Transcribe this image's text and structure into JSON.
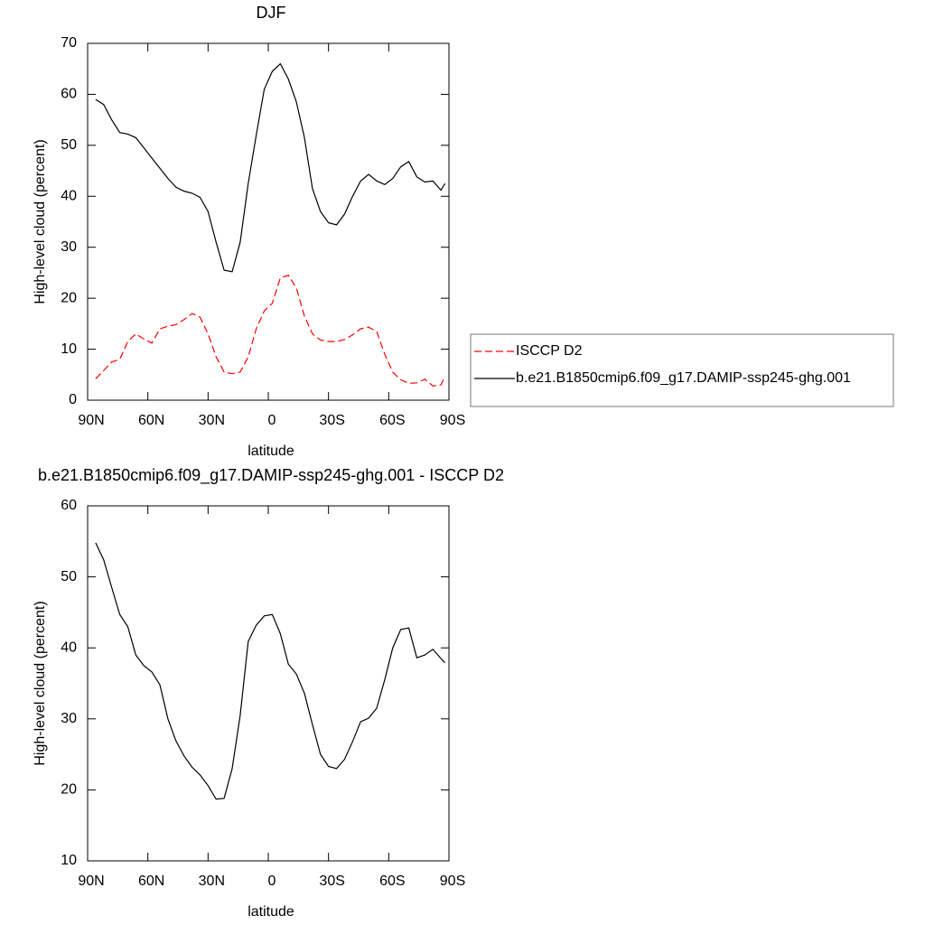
{
  "chart_data": [
    {
      "type": "line",
      "title": "DJF",
      "x_label": "latitude",
      "y_label": "High-level cloud (percent)",
      "xlim": [
        90,
        -90
      ],
      "xticks": [
        {
          "value": 90,
          "label": "90N"
        },
        {
          "value": 60,
          "label": "60N"
        },
        {
          "value": 30,
          "label": "30N"
        },
        0,
        {
          "value": -30,
          "label": "30S"
        },
        {
          "value": -60,
          "label": "60S"
        },
        {
          "value": -90,
          "label": "90S"
        }
      ],
      "ylim": [
        0,
        70
      ],
      "yticks": [
        0,
        10,
        20,
        30,
        40,
        50,
        60,
        70
      ],
      "legend": "right",
      "x": [
        86,
        82,
        78,
        74,
        70,
        66,
        62,
        58,
        54,
        50,
        46,
        42,
        38,
        34,
        30,
        26,
        22,
        18,
        14,
        10,
        6,
        2,
        -2,
        -6,
        -10,
        -14,
        -18,
        -22,
        -26,
        -30,
        -34,
        -38,
        -42,
        -46,
        -50,
        -54,
        -58,
        -62,
        -66,
        -70,
        -74,
        -78,
        -82,
        -86,
        -88
      ],
      "series": [
        {
          "name": "ISCCP D2",
          "color": "#ff0000",
          "line_style": "dashed",
          "values": [
            4.2,
            5.8,
            7.5,
            8,
            11.5,
            13,
            12,
            11.2,
            14,
            14.5,
            14.8,
            15.8,
            17,
            16.3,
            13,
            8.5,
            5.5,
            5.2,
            5.5,
            8.5,
            14,
            17.5,
            19,
            24,
            24.5,
            22,
            16.5,
            13,
            11.8,
            11.5,
            11.5,
            11.9,
            12.8,
            14,
            14.3,
            13.5,
            9,
            5.5,
            4,
            3.3,
            3.4,
            4.1,
            2.8,
            3,
            4.7
          ]
        },
        {
          "name": "b.e21.B1850cmip6.f09_g17.DAMIP-ssp245-ghg.001",
          "color": "#000000",
          "line_style": "solid",
          "values": [
            59,
            58,
            55,
            52.5,
            52.2,
            51.5,
            49.5,
            47.5,
            45.5,
            43.5,
            41.8,
            41,
            40.6,
            39.8,
            37,
            31,
            25.5,
            25.2,
            31,
            42.5,
            52,
            61,
            64.5,
            66,
            63,
            58.5,
            51.5,
            41.5,
            37,
            34.8,
            34.4,
            36.5,
            40,
            43,
            44.3,
            43,
            42.3,
            43.5,
            45.8,
            46.8,
            43.8,
            42.8,
            43,
            41.2,
            42.5
          ]
        }
      ]
    },
    {
      "type": "line",
      "title": "b.e21.B1850cmip6.f09_g17.DAMIP-ssp245-ghg.001 - ISCCP D2",
      "x_label": "latitude",
      "y_label": "High-level cloud (percent)",
      "xlim": [
        90,
        -90
      ],
      "xticks": [
        {
          "value": 90,
          "label": "90N"
        },
        {
          "value": 60,
          "label": "60N"
        },
        {
          "value": 30,
          "label": "30N"
        },
        0,
        {
          "value": -30,
          "label": "30S"
        },
        {
          "value": -60,
          "label": "60S"
        },
        {
          "value": -90,
          "label": "90S"
        }
      ],
      "ylim": [
        10,
        60
      ],
      "yticks": [
        10,
        20,
        30,
        40,
        50,
        60
      ],
      "x": [
        86,
        82,
        78,
        74,
        70,
        66,
        62,
        58,
        54,
        50,
        46,
        42,
        38,
        34,
        30,
        26,
        22,
        18,
        14,
        10,
        6,
        2,
        -2,
        -6,
        -10,
        -14,
        -18,
        -22,
        -26,
        -30,
        -34,
        -38,
        -42,
        -46,
        -50,
        -54,
        -58,
        -62,
        -66,
        -70,
        -74,
        -78,
        -82,
        -86,
        -88
      ],
      "series": [
        {
          "color": "#000000",
          "line_style": "solid",
          "values": [
            54.8,
            52.4,
            48.5,
            44.7,
            43,
            39,
            37.5,
            36.6,
            34.8,
            30,
            26.9,
            24.8,
            23.2,
            22.1,
            20.6,
            18.7,
            18.8,
            23,
            30.5,
            40.9,
            43.2,
            44.5,
            44.7,
            42,
            37.7,
            36.3,
            33.6,
            29.2,
            25,
            23.3,
            23,
            24.3,
            26.8,
            29.6,
            30.1,
            31.5,
            35.5,
            40,
            42.6,
            42.8,
            38.6,
            39,
            39.8,
            38.5,
            37.9
          ]
        }
      ]
    }
  ]
}
